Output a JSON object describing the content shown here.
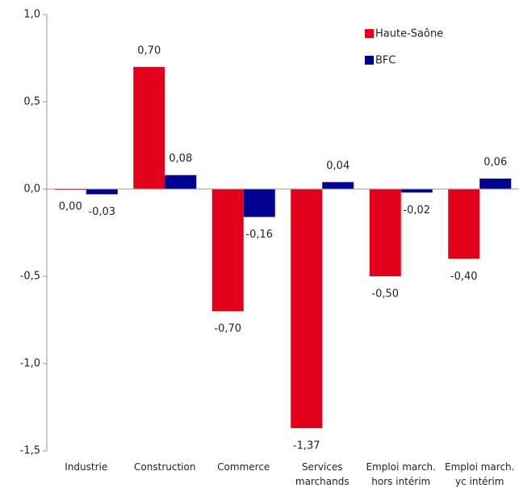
{
  "chart_data": {
    "type": "bar",
    "categories": [
      "Industrie",
      "Construction",
      "Commerce",
      "Services\nmarchands",
      "Emploi march.\nhors intérim",
      "Emploi march.\nyc intérim"
    ],
    "series": [
      {
        "name": "Haute-Saône",
        "color": "#e2001a",
        "values": [
          0.0,
          0.7,
          -0.7,
          -1.37,
          -0.5,
          -0.4
        ],
        "value_labels": [
          "0,00",
          "0,70",
          "-0,70",
          "-1,37",
          "-0,50",
          "-0,40"
        ]
      },
      {
        "name": "BFC",
        "color": "#000091",
        "values": [
          -0.03,
          0.08,
          -0.16,
          0.04,
          -0.02,
          0.06
        ],
        "value_labels": [
          "-0,03",
          "0,08",
          "-0,16",
          "0,04",
          "-0,02",
          "0,06"
        ]
      }
    ],
    "ylim": [
      -1.5,
      1.0
    ],
    "yticks": [
      {
        "value": 1.0,
        "label": "1,0"
      },
      {
        "value": 0.5,
        "label": "0,5"
      },
      {
        "value": 0.0,
        "label": "0,0"
      },
      {
        "value": -0.5,
        "label": "-0,5"
      },
      {
        "value": -1.0,
        "label": "-1,0"
      },
      {
        "value": -1.5,
        "label": "-1,5"
      }
    ],
    "grid": false,
    "legend": "upper right"
  }
}
